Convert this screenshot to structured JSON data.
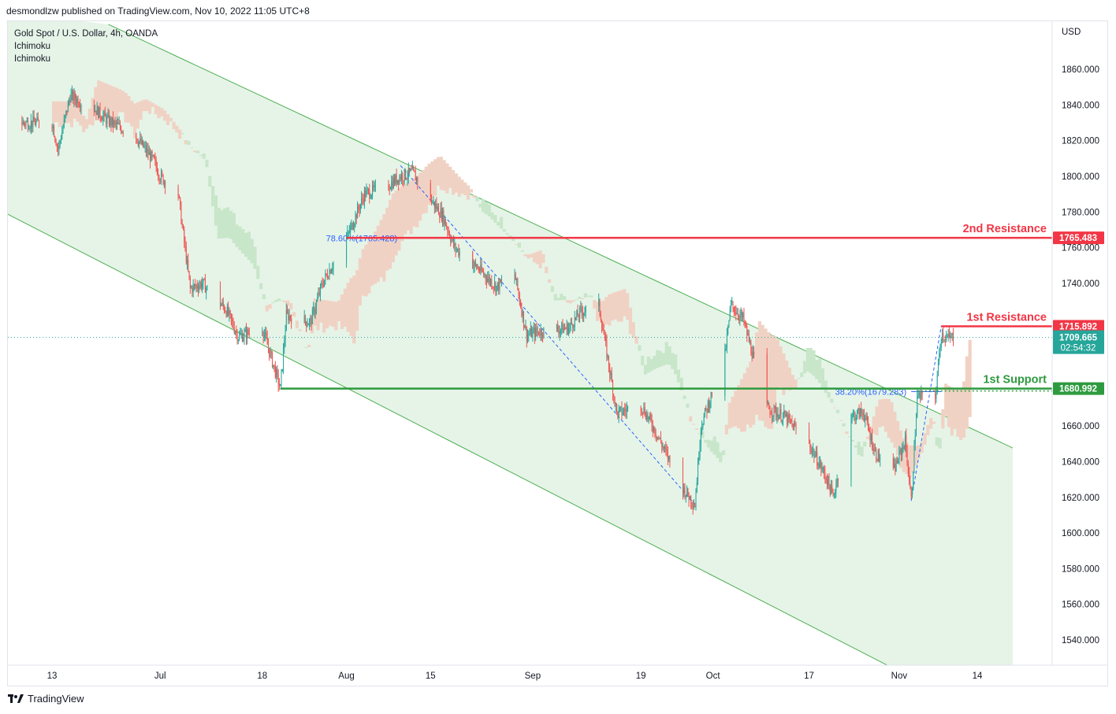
{
  "header": {
    "published_by": "desmondlzw published on TradingView.com, Nov 10, 2022 11:05 UTC+8"
  },
  "legend": {
    "symbol": "Gold Spot / U.S. Dollar, 4h, OANDA",
    "indicator_1": "Ichimoku",
    "indicator_2": "Ichimoku"
  },
  "footer": {
    "brand": "TradingView",
    "logo_icon": "tradingview-logo-icon"
  },
  "chart_data": {
    "type": "candlestick",
    "currency_label": "USD",
    "y_ticks": [
      1540,
      1560,
      1580,
      1600,
      1620,
      1640,
      1660,
      1680,
      1700,
      1720,
      1740,
      1760,
      1780,
      1800,
      1820,
      1840,
      1860
    ],
    "y_tick_labels": [
      "1540.000",
      "1560.000",
      "1580.000",
      "1600.000",
      "1620.000",
      "1640.000",
      "1660.000",
      "1680.000",
      "1700.000",
      "1720.000",
      "1740.000",
      "1760.000",
      "1780.000",
      "1800.000",
      "1820.000",
      "1840.000",
      "1860.000"
    ],
    "ylim": [
      1528,
      1882
    ],
    "x_ticks": [
      "13",
      "Jul",
      "18",
      "Aug",
      "15",
      "Sep",
      "19",
      "Oct",
      "17",
      "Nov",
      "14"
    ],
    "x_tick_dates": [
      "2022-06-13",
      "2022-07-01",
      "2022-07-18",
      "2022-08-01",
      "2022-08-15",
      "2022-09-01",
      "2022-09-19",
      "2022-10-01",
      "2022-10-17",
      "2022-11-01",
      "2022-11-14"
    ],
    "xlim": [
      "2022-06-13",
      "2022-11-14"
    ],
    "price_path": [
      [
        "2022-06-13",
        1830
      ],
      [
        "2022-06-14",
        1815
      ],
      [
        "2022-06-16",
        1845
      ],
      [
        "2022-06-20",
        1838
      ],
      [
        "2022-06-22",
        1832
      ],
      [
        "2022-06-27",
        1822
      ],
      [
        "2022-06-30",
        1808
      ],
      [
        "2022-07-01",
        1800
      ],
      [
        "2022-07-04",
        1790
      ],
      [
        "2022-07-05",
        1763
      ],
      [
        "2022-07-06",
        1737
      ],
      [
        "2022-07-08",
        1740
      ],
      [
        "2022-07-12",
        1725
      ],
      [
        "2022-07-14",
        1710
      ],
      [
        "2022-07-18",
        1715
      ],
      [
        "2022-07-21",
        1681
      ],
      [
        "2022-07-22",
        1722
      ],
      [
        "2022-07-26",
        1718
      ],
      [
        "2022-07-28",
        1740
      ],
      [
        "2022-08-01",
        1765
      ],
      [
        "2022-08-04",
        1790
      ],
      [
        "2022-08-08",
        1795
      ],
      [
        "2022-08-10",
        1800
      ],
      [
        "2022-08-12",
        1802
      ],
      [
        "2022-08-15",
        1787
      ],
      [
        "2022-08-17",
        1778
      ],
      [
        "2022-08-19",
        1760
      ],
      [
        "2022-08-23",
        1748
      ],
      [
        "2022-08-26",
        1738
      ],
      [
        "2022-08-29",
        1745
      ],
      [
        "2022-08-31",
        1711
      ],
      [
        "2022-09-02",
        1713
      ],
      [
        "2022-09-07",
        1715
      ],
      [
        "2022-09-09",
        1724
      ],
      [
        "2022-09-12",
        1728
      ],
      [
        "2022-09-15",
        1667
      ],
      [
        "2022-09-19",
        1672
      ],
      [
        "2022-09-21",
        1660
      ],
      [
        "2022-09-26",
        1625
      ],
      [
        "2022-09-28",
        1616
      ],
      [
        "2022-09-29",
        1660
      ],
      [
        "2022-10-03",
        1700
      ],
      [
        "2022-10-04",
        1728
      ],
      [
        "2022-10-06",
        1720
      ],
      [
        "2022-10-10",
        1670
      ],
      [
        "2022-10-13",
        1665
      ],
      [
        "2022-10-17",
        1650
      ],
      [
        "2022-10-20",
        1630
      ],
      [
        "2022-10-21",
        1620
      ],
      [
        "2022-10-24",
        1665
      ],
      [
        "2022-10-26",
        1668
      ],
      [
        "2022-10-28",
        1645
      ],
      [
        "2022-10-31",
        1634
      ],
      [
        "2022-11-02",
        1652
      ],
      [
        "2022-11-03",
        1618
      ],
      [
        "2022-11-04",
        1676
      ],
      [
        "2022-11-07",
        1676
      ],
      [
        "2022-11-08",
        1712
      ],
      [
        "2022-11-09",
        1709
      ],
      [
        "2022-11-10",
        1709.665
      ]
    ],
    "channel": {
      "upper": [
        [
          "2022-06-13",
          1900
        ],
        [
          "2022-11-14",
          1657
        ]
      ],
      "lower": [
        [
          "2022-06-13",
          1766
        ],
        [
          "2022-11-14",
          1500
        ]
      ]
    },
    "horizontal_levels": [
      {
        "label": "2nd Resistance",
        "value": 1765.483,
        "value_label": "1765.483",
        "color": "#f23645"
      },
      {
        "label": "1st Resistance",
        "value": 1715.892,
        "value_label": "1715.892",
        "color": "#f23645"
      },
      {
        "label": "1st Support",
        "value": 1680.992,
        "value_label": "1680.992",
        "color": "#2e9a3f"
      }
    ],
    "fibonacci_labels": [
      {
        "text": "78.60%(1765.428)",
        "value": 1765.428
      },
      {
        "text": "38.20%(1679.283)",
        "value": 1679.283
      }
    ],
    "last_price": {
      "value": 1709.665,
      "label": "1709.665",
      "countdown": "02:54:32",
      "color": "#26a69a"
    },
    "colors": {
      "up": "#26a69a",
      "down": "#ef5350",
      "channel_line": "#4caf50",
      "channel_fill": "#e6f4e8",
      "cloud_bull": "#c8e6c9",
      "cloud_bear": "#f0d2c4",
      "fib_line": "#2962ff",
      "resistance": "#f23645",
      "support": "#2e9a3f"
    }
  }
}
